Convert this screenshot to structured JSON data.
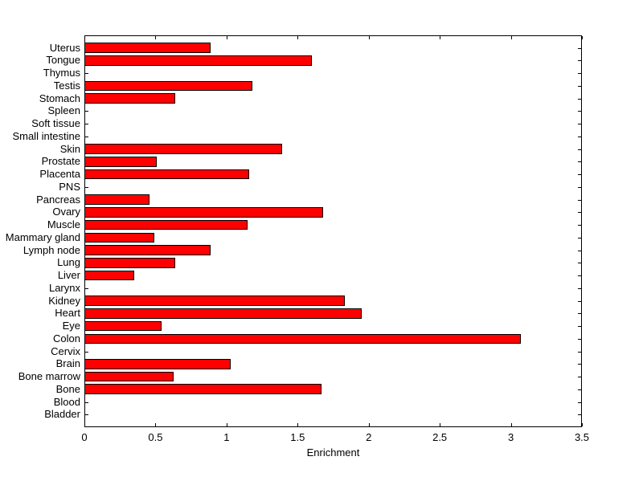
{
  "chart_data": {
    "type": "bar",
    "orientation": "horizontal",
    "categories_order": "top_to_bottom",
    "categories": [
      "Uterus",
      "Tongue",
      "Thymus",
      "Testis",
      "Stomach",
      "Spleen",
      "Soft tissue",
      "Small intestine",
      "Skin",
      "Prostate",
      "Placenta",
      "PNS",
      "Pancreas",
      "Ovary",
      "Muscle",
      "Mammary gland",
      "Lymph node",
      "Lung",
      "Liver",
      "Larynx",
      "Kidney",
      "Heart",
      "Eye",
      "Colon",
      "Cervix",
      "Brain",
      "Bone marrow",
      "Bone",
      "Blood",
      "Bladder"
    ],
    "values": [
      0.89,
      1.6,
      0,
      1.18,
      0.64,
      0,
      0,
      0,
      1.39,
      0.51,
      1.16,
      0,
      0.46,
      1.68,
      1.15,
      0.49,
      0.89,
      0.64,
      0.35,
      0,
      1.83,
      1.95,
      0.54,
      3.07,
      0,
      1.03,
      0.63,
      1.67,
      0,
      0
    ],
    "xlabel": "Enrichment",
    "xlim": [
      0,
      3.5
    ],
    "xticks": [
      0,
      0.5,
      1,
      1.5,
      2,
      2.5,
      3,
      3.5
    ],
    "xtick_labels": [
      "0",
      "0.5",
      "1",
      "1.5",
      "2",
      "2.5",
      "3",
      "3.5"
    ],
    "grid": false,
    "legend": "none",
    "bar_color": "#FF0000",
    "bar_edge_color": "#000000",
    "axis_color": "#000000",
    "background_color": "#FFFFFF"
  }
}
